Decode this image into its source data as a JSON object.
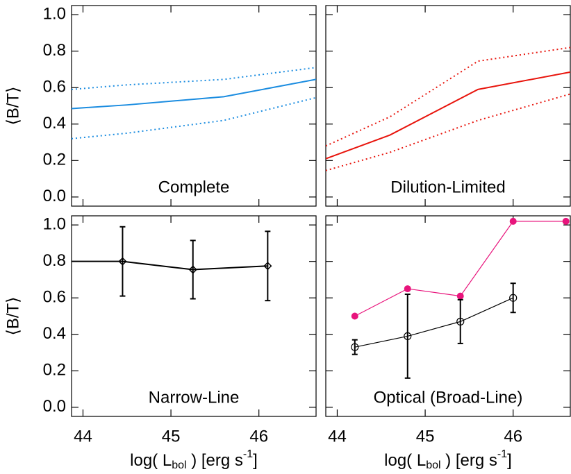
{
  "chart_data": [
    {
      "type": "line",
      "annotation": "Complete",
      "ylabel": "⟨B/T⟩",
      "xlim": [
        43.87,
        46.65
      ],
      "ylim": [
        -0.05,
        1.05
      ],
      "xticks": [
        44,
        45,
        46
      ],
      "yticks": [
        {
          "value": 0,
          "label": "0.0"
        },
        {
          "value": 0.2,
          "label": "0.2"
        },
        {
          "value": 0.4,
          "label": "0.4"
        },
        {
          "value": 0.6,
          "label": "0.6"
        },
        {
          "value": 0.8,
          "label": "0.8"
        },
        {
          "value": 1,
          "label": "1.0"
        }
      ],
      "series": [
        {
          "color": "#1a8ce0",
          "dash": "solid",
          "x": [
            43.87,
            44.5,
            45.6,
            46.65
          ],
          "values": [
            0.485,
            0.505,
            0.55,
            0.645
          ]
        },
        {
          "color": "#1a8ce0",
          "dash": "dotted",
          "x": [
            43.87,
            44.5,
            45.6,
            46.65
          ],
          "values": [
            0.59,
            0.615,
            0.645,
            0.71
          ]
        },
        {
          "color": "#1a8ce0",
          "dash": "dotted",
          "x": [
            43.87,
            44.5,
            45.6,
            46.65
          ],
          "values": [
            0.32,
            0.35,
            0.42,
            0.545
          ]
        }
      ]
    },
    {
      "type": "line",
      "annotation": "Dilution-Limited",
      "xlim": [
        43.87,
        46.65
      ],
      "ylim": [
        -0.05,
        1.05
      ],
      "xticks": [
        44,
        45,
        46
      ],
      "yticks": [
        0,
        0.2,
        0.4,
        0.6,
        0.8,
        1
      ],
      "series": [
        {
          "color": "#e8140c",
          "dash": "solid",
          "x": [
            43.87,
            44.6,
            45.6,
            46.65
          ],
          "values": [
            0.21,
            0.34,
            0.59,
            0.685
          ]
        },
        {
          "color": "#e8140c",
          "dash": "dotted",
          "x": [
            43.87,
            44.6,
            45.6,
            46.65
          ],
          "values": [
            0.28,
            0.44,
            0.745,
            0.82
          ]
        },
        {
          "color": "#e8140c",
          "dash": "dotted",
          "x": [
            43.87,
            44.6,
            45.6,
            46.65
          ],
          "values": [
            0.145,
            0.245,
            0.42,
            0.565
          ]
        }
      ]
    },
    {
      "type": "line",
      "annotation": "Narrow-Line",
      "ylabel": "⟨B/T⟩",
      "xlabel": {
        "pre": "log( L",
        "sub": "bol",
        "mid": " )  [erg s",
        "sup": "-1",
        "post": "]"
      },
      "xlim": [
        43.87,
        46.65
      ],
      "ylim": [
        -0.05,
        1.05
      ],
      "xticks": [
        44,
        45,
        46
      ],
      "yticks": [
        {
          "value": 0,
          "label": "0.0"
        },
        {
          "value": 0.2,
          "label": "0.2"
        },
        {
          "value": 0.4,
          "label": "0.4"
        },
        {
          "value": 0.6,
          "label": "0.6"
        },
        {
          "value": 0.8,
          "label": "0.8"
        },
        {
          "value": 1,
          "label": "1.0"
        }
      ],
      "series": [
        {
          "color": "#000000",
          "dash": "solid",
          "marker": "diamond",
          "x": [
            43.87,
            44.45,
            45.25,
            46.1
          ],
          "values": [
            0.8,
            0.8,
            0.755,
            0.775
          ],
          "yerr": [
            null,
            0.19,
            0.16,
            0.19
          ]
        }
      ]
    },
    {
      "type": "line",
      "annotation": "Optical (Broad-Line)",
      "xlabel": {
        "pre": "log( L",
        "sub": "bol",
        "mid": " )  [erg s",
        "sup": "-1",
        "post": "]"
      },
      "xlim": [
        43.87,
        46.65
      ],
      "ylim": [
        -0.05,
        1.05
      ],
      "xticks": [
        44,
        45,
        46
      ],
      "yticks": [
        0,
        0.2,
        0.4,
        0.6,
        0.8,
        1
      ],
      "series": [
        {
          "color": "#e8147c",
          "dash": "solid",
          "marker": "filled-circle",
          "x": [
            44.2,
            44.8,
            45.4,
            46.0,
            46.6
          ],
          "values": [
            0.5,
            0.65,
            0.61,
            1.02,
            1.02
          ]
        },
        {
          "color": "#000000",
          "dash": "solid",
          "marker": "open-circle",
          "x": [
            44.2,
            44.8,
            45.4,
            46.0
          ],
          "values": [
            0.33,
            0.39,
            0.47,
            0.6
          ],
          "yerr": [
            0.04,
            0.23,
            0.12,
            0.08
          ]
        }
      ]
    }
  ]
}
